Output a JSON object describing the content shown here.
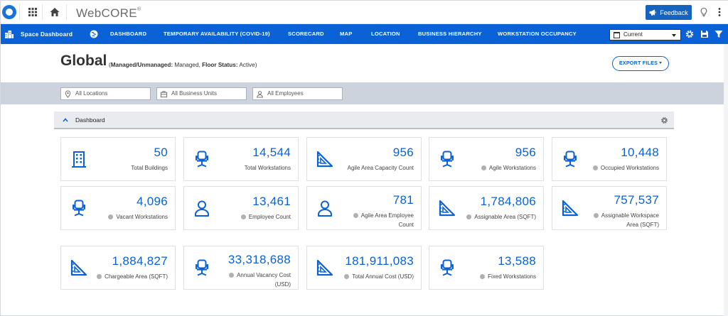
{
  "app": {
    "brand": "WebCORE",
    "brand_mark": "®",
    "feedback_label": "Feedback"
  },
  "nav": {
    "title": "Space Dashboard",
    "items": [
      {
        "label": "DASHBOARD"
      },
      {
        "label": "TEMPORARY AVAILABILITY (COVID-19)"
      },
      {
        "label": "SCORECARD"
      },
      {
        "label": "MAP"
      },
      {
        "label": "LOCATION"
      },
      {
        "label": "BUSINESS HIERARCHY"
      },
      {
        "label": "WORKSTATION OCCUPANCY"
      }
    ],
    "period_select": "Current"
  },
  "header": {
    "title": "Global",
    "filter_key1": "Managed/Unmanaged:",
    "filter_val1": "Managed,",
    "filter_key2": "Floor Status:",
    "filter_val2": "Active)",
    "open_paren": "(",
    "export_label": "EXPORT FILES"
  },
  "filters": {
    "locations": "All Locations",
    "business_units": "All Business Units",
    "employees": "All Employees"
  },
  "section": {
    "label": "Dashboard"
  },
  "cards": [
    {
      "value": "50",
      "label": "Total Buildings",
      "icon": "building-icon",
      "info": false
    },
    {
      "value": "14,544",
      "label": "Total Workstations",
      "icon": "chair-icon",
      "info": false
    },
    {
      "value": "956",
      "label": "Agile Area Capacity Count",
      "icon": "triangle-ruler-icon",
      "info": false
    },
    {
      "value": "956",
      "label": "Agile Workstations",
      "icon": "chair-icon",
      "info": true
    },
    {
      "value": "10,448",
      "label": "Occupied Workstations",
      "icon": "chair-icon",
      "info": true
    },
    {
      "value": "4,096",
      "label": "Vacant Workstations",
      "icon": "chair-icon",
      "info": true
    },
    {
      "value": "13,461",
      "label": "Employee Count",
      "icon": "person-icon",
      "info": true
    },
    {
      "value": "781",
      "label": "Agile Area Employee",
      "label2": "Count",
      "icon": "person-icon",
      "info": true
    },
    {
      "value": "1,784,806",
      "label": "Assignable Area (SQFT)",
      "icon": "triangle-ruler-icon",
      "info": true
    },
    {
      "value": "757,537",
      "label": "Assignable Workspace",
      "label2": "Area (SQFT)",
      "icon": "triangle-ruler-icon",
      "info": true
    },
    {
      "value": "1,884,827",
      "label": "Chargeable Area (SQFT)",
      "icon": "triangle-ruler-icon",
      "info": true
    },
    {
      "value": "33,318,688",
      "label": "Annual Vacancy Cost",
      "label2": "(USD)",
      "icon": "chair-icon",
      "info": true
    },
    {
      "value": "181,911,083",
      "label": "Total Annual Cost (USD)",
      "icon": "triangle-ruler-icon",
      "info": true
    },
    {
      "value": "13,588",
      "label": "Fixed Workstations",
      "icon": "chair-icon",
      "info": true
    }
  ],
  "colors": {
    "primary": "#0a62d6",
    "feedback": "#1565c0",
    "filter_strip": "#ccd3dd",
    "section_bar": "#e9ebee"
  }
}
